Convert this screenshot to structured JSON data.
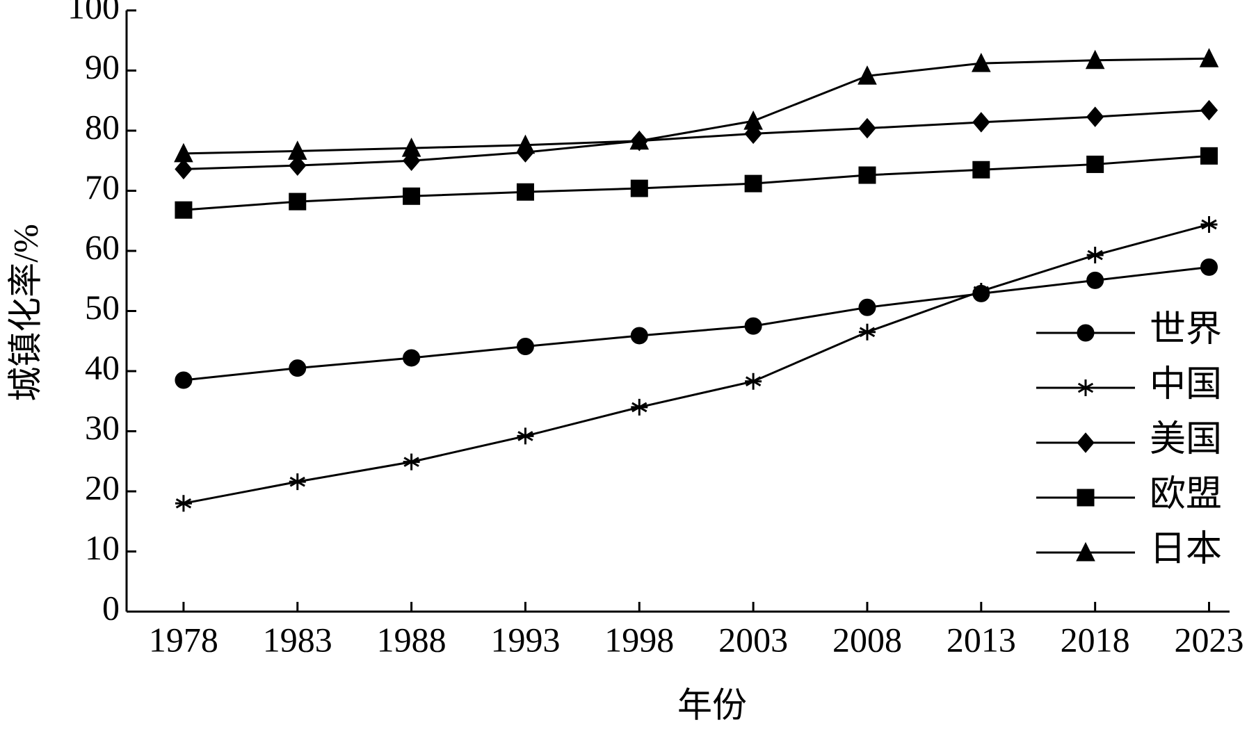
{
  "chart_data": {
    "type": "line",
    "x_label": "年份",
    "y_label": "城镇化率/%",
    "x": [
      1978,
      1983,
      1988,
      1993,
      1998,
      2003,
      2008,
      2013,
      2018,
      2023
    ],
    "xlim": [
      1975.5,
      2023.9
    ],
    "xticks": [
      1978,
      1983,
      1988,
      1993,
      1998,
      2003,
      2008,
      2013,
      2018,
      2023
    ],
    "ylim": [
      0,
      100
    ],
    "yticks": [
      0,
      10,
      20,
      30,
      40,
      50,
      60,
      70,
      80,
      90,
      100
    ],
    "legend": "lower right",
    "series": [
      {
        "name": "世界",
        "color": "#000000",
        "marker": "circle",
        "values": [
          38.5,
          40.5,
          42.2,
          44.1,
          45.9,
          47.5,
          50.6,
          52.9,
          55.1,
          57.3
        ]
      },
      {
        "name": "中国",
        "color": "#000000",
        "marker": "asterisk",
        "values": [
          18.0,
          21.6,
          24.9,
          29.2,
          34.0,
          38.3,
          46.5,
          53.3,
          59.3,
          64.4
        ]
      },
      {
        "name": "美国",
        "color": "#000000",
        "marker": "diamond",
        "values": [
          73.6,
          74.2,
          75.0,
          76.4,
          78.3,
          79.5,
          80.4,
          81.4,
          82.3,
          83.4
        ]
      },
      {
        "name": "欧盟",
        "color": "#000000",
        "marker": "square",
        "values": [
          66.8,
          68.2,
          69.1,
          69.8,
          70.4,
          71.2,
          72.6,
          73.5,
          74.4,
          75.8
        ]
      },
      {
        "name": "日本",
        "color": "#000000",
        "marker": "triangle",
        "values": [
          76.2,
          76.6,
          77.1,
          77.6,
          78.3,
          81.6,
          89.1,
          91.2,
          91.7,
          92.0
        ]
      }
    ]
  }
}
